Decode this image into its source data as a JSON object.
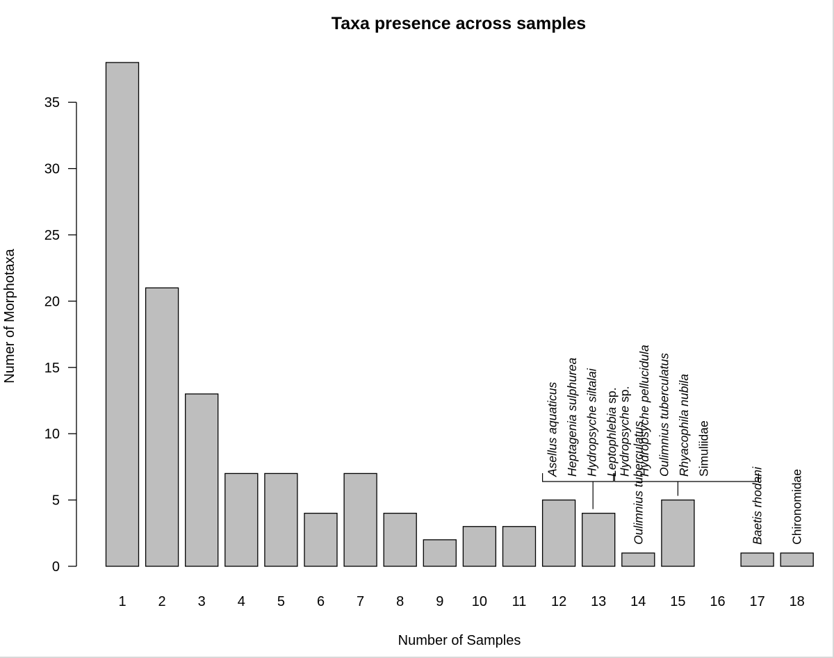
{
  "chart_data": {
    "type": "bar",
    "title": "Taxa presence across samples",
    "xlabel": "Number of Samples",
    "ylabel": "Numer of Morphotaxa",
    "categories": [
      "1",
      "2",
      "3",
      "4",
      "5",
      "6",
      "7",
      "8",
      "9",
      "10",
      "11",
      "12",
      "13",
      "14",
      "15",
      "16",
      "17",
      "18"
    ],
    "values": [
      38,
      21,
      13,
      7,
      7,
      4,
      7,
      4,
      2,
      3,
      3,
      5,
      4,
      1,
      5,
      0,
      1,
      1
    ],
    "ylim": [
      0,
      38
    ],
    "yticks": [
      "0",
      "5",
      "10",
      "15",
      "20",
      "25",
      "30",
      "35"
    ],
    "grid": false,
    "bar_color": "#bebebe",
    "annotations": [
      {
        "category": "12",
        "bracket_to": "13",
        "labels": [
          {
            "italic": "Asellus aquaticus",
            "plain": ""
          },
          {
            "italic": "Heptagenia sulphurea",
            "plain": ""
          },
          {
            "italic": "Hydropsyche siltalai",
            "plain": ""
          },
          {
            "italic": "Leptophlebia",
            "plain": " sp."
          }
        ]
      },
      {
        "category": "14",
        "labels": [
          {
            "italic": "Oulimnius tuberculatus",
            "plain": ""
          }
        ]
      },
      {
        "category": "15",
        "labels": [
          {
            "italic": "Hydropsyche",
            "plain": " sp."
          },
          {
            "italic": "Hydropsyche pellucidula",
            "plain": ""
          },
          {
            "italic": "Oulimnius tuberculatus",
            "plain": ""
          },
          {
            "italic": "Rhyacophila nubila",
            "plain": ""
          },
          {
            "italic": "",
            "plain": "Simuliidae"
          }
        ]
      },
      {
        "category": "17",
        "labels": [
          {
            "italic": "Baetis rhodani",
            "plain": ""
          }
        ]
      },
      {
        "category": "18",
        "labels": [
          {
            "italic": "",
            "plain": "Chironomidae"
          }
        ]
      }
    ]
  }
}
